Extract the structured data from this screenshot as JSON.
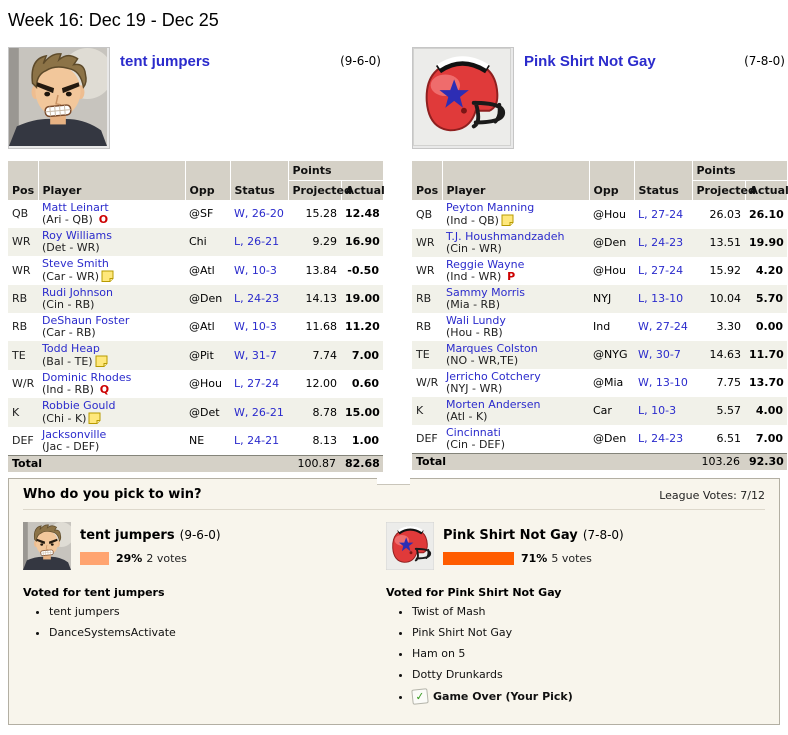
{
  "header": {
    "title": "Week 16: Dec 19 - Dec 25"
  },
  "matchup": {
    "teams": [
      {
        "name": "tent jumpers",
        "record": "(9-6-0)"
      },
      {
        "name": "Pink Shirt Not Gay",
        "record": "(7-8-0)"
      }
    ]
  },
  "table_headers": {
    "pos": "Pos",
    "player": "Player",
    "opp": "Opp",
    "status": "Status",
    "points": "Points",
    "projected": "Projected",
    "actual": "Actual",
    "total": "Total"
  },
  "rosters": [
    {
      "rows": [
        {
          "pos": "QB",
          "player": "Matt Leinart",
          "detail": "(Ari - QB)",
          "flag": "O",
          "opp": "@SF",
          "status": "W, 26-20",
          "projected": "15.28",
          "actual": "12.48"
        },
        {
          "pos": "WR",
          "player": "Roy Williams",
          "detail": "(Det - WR)",
          "opp": "Chi",
          "status": "L, 26-21",
          "projected": "9.29",
          "actual": "16.90"
        },
        {
          "pos": "WR",
          "player": "Steve Smith",
          "detail": "(Car - WR)",
          "note": "note",
          "opp": "@Atl",
          "status": "W, 10-3",
          "projected": "13.84",
          "actual": "-0.50"
        },
        {
          "pos": "RB",
          "player": "Rudi Johnson",
          "detail": "(Cin - RB)",
          "opp": "@Den",
          "status": "L, 24-23",
          "projected": "14.13",
          "actual": "19.00"
        },
        {
          "pos": "RB",
          "player": "DeShaun Foster",
          "detail": "(Car - RB)",
          "opp": "@Atl",
          "status": "W, 10-3",
          "projected": "11.68",
          "actual": "11.20"
        },
        {
          "pos": "TE",
          "player": "Todd Heap",
          "detail": "(Bal - TE)",
          "note": "note",
          "opp": "@Pit",
          "status": "W, 31-7",
          "projected": "7.74",
          "actual": "7.00"
        },
        {
          "pos": "W/R",
          "player": "Dominic Rhodes",
          "detail": "(Ind - RB)",
          "flag": "Q",
          "opp": "@Hou",
          "status": "L, 27-24",
          "projected": "12.00",
          "actual": "0.60"
        },
        {
          "pos": "K",
          "player": "Robbie Gould",
          "detail": "(Chi - K)",
          "note": "note-pencil",
          "opp": "@Det",
          "status": "W, 26-21",
          "projected": "8.78",
          "actual": "15.00"
        },
        {
          "pos": "DEF",
          "player": "Jacksonville",
          "detail": "(Jac - DEF)",
          "opp": "NE",
          "status": "L, 24-21",
          "projected": "8.13",
          "actual": "1.00"
        }
      ],
      "total_projected": "100.87",
      "total_actual": "82.68"
    },
    {
      "rows": [
        {
          "pos": "QB",
          "player": "Peyton Manning",
          "detail": "(Ind - QB)",
          "note": "note",
          "opp": "@Hou",
          "status": "L, 27-24",
          "projected": "26.03",
          "actual": "26.10"
        },
        {
          "pos": "WR",
          "player": "T.J. Houshmandzadeh",
          "detail": "(Cin - WR)",
          "opp": "@Den",
          "status": "L, 24-23",
          "projected": "13.51",
          "actual": "19.90"
        },
        {
          "pos": "WR",
          "player": "Reggie Wayne",
          "detail": "(Ind - WR)",
          "flag": "P",
          "opp": "@Hou",
          "status": "L, 27-24",
          "projected": "15.92",
          "actual": "4.20"
        },
        {
          "pos": "RB",
          "player": "Sammy Morris",
          "detail": "(Mia - RB)",
          "opp": "NYJ",
          "status": "L, 13-10",
          "projected": "10.04",
          "actual": "5.70"
        },
        {
          "pos": "RB",
          "player": "Wali Lundy",
          "detail": "(Hou - RB)",
          "opp": "Ind",
          "status": "W, 27-24",
          "projected": "3.30",
          "actual": "0.00"
        },
        {
          "pos": "TE",
          "player": "Marques Colston",
          "detail": "(NO - WR,TE)",
          "opp": "@NYG",
          "status": "W, 30-7",
          "projected": "14.63",
          "actual": "11.70"
        },
        {
          "pos": "W/R",
          "player": "Jerricho Cotchery",
          "detail": "(NYJ - WR)",
          "opp": "@Mia",
          "status": "W, 13-10",
          "projected": "7.75",
          "actual": "13.70"
        },
        {
          "pos": "K",
          "player": "Morten Andersen",
          "detail": "(Atl - K)",
          "opp": "Car",
          "status": "L, 10-3",
          "projected": "5.57",
          "actual": "4.00"
        },
        {
          "pos": "DEF",
          "player": "Cincinnati",
          "detail": "(Cin - DEF)",
          "opp": "@Den",
          "status": "L, 24-23",
          "projected": "6.51",
          "actual": "7.00"
        }
      ],
      "total_projected": "103.26",
      "total_actual": "92.30"
    }
  ],
  "vote": {
    "question": "Who do you pick to win?",
    "league_votes": "League Votes: 7/12",
    "teams": [
      {
        "name": "tent jumpers",
        "record": "(9-6-0)",
        "percent": 29,
        "percent_label": "29%",
        "votes_label": "2 votes",
        "bar_color": "#ffa470"
      },
      {
        "name": "Pink Shirt Not Gay",
        "record": "(7-8-0)",
        "percent": 71,
        "percent_label": "71%",
        "votes_label": "5 votes",
        "bar_color": "#ff5c00"
      }
    ],
    "lists": [
      {
        "heading": "Voted for tent jumpers",
        "voters": [
          {
            "label": "tent jumpers"
          },
          {
            "label": "DanceSystemsActivate"
          }
        ]
      },
      {
        "heading": "Voted for Pink Shirt Not Gay",
        "voters": [
          {
            "label": "Twist of Mash"
          },
          {
            "label": "Pink Shirt Not Gay"
          },
          {
            "label": "Ham on 5"
          },
          {
            "label": "Dotty Drunkards"
          },
          {
            "label": "Game Over (Your Pick)",
            "checked": true
          }
        ]
      }
    ]
  },
  "colors": {
    "link_blue": "#2b2bcc",
    "flag_red": "#cc0000",
    "bar_left": "#ffa470",
    "bar_right": "#ff5c00",
    "header_gray": "#d5d1c7",
    "header_beige": "#ece9dc",
    "panel_bg": "#f8f5ec"
  }
}
